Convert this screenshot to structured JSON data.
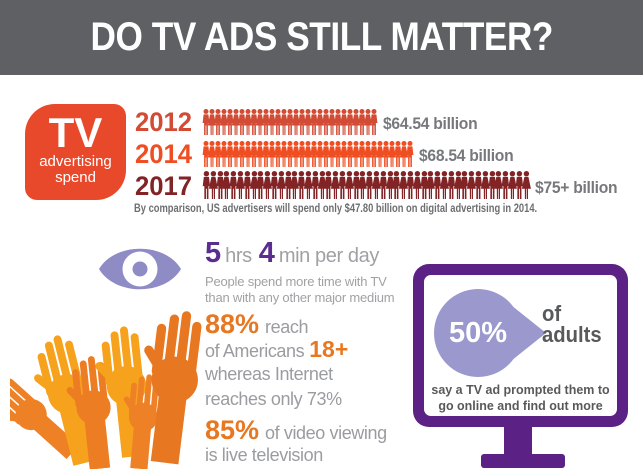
{
  "header": {
    "title": "DO TV ADS STILL MATTER?",
    "bg": "#5e6063"
  },
  "spend_badge": {
    "title": "TV",
    "line2": "advertising",
    "line3": "spend",
    "bg": "#e8492b"
  },
  "spend_rows": [
    {
      "year": "2012",
      "value": "$64.54 billion",
      "color": "#d14b35",
      "count": 29
    },
    {
      "year": "2014",
      "value": "$68.54 billion",
      "color": "#ef4e23",
      "count": 35
    },
    {
      "year": "2017",
      "value": "$75+ billion",
      "color": "#822325",
      "count": 48
    }
  ],
  "spend_note": "By comparison, US advertisers will spend only $47.80 billion on digital advertising in 2014.",
  "time_stat": {
    "hours": "5",
    "hours_unit": "hrs",
    "minutes": "4",
    "minutes_unit": "min per day",
    "desc1": "People spend more time with TV",
    "desc2": "than with any other major medium"
  },
  "reach_stat": {
    "pct": "88%",
    "pct_suffix": "reach",
    "line2_text": "of Americans",
    "age": "18+",
    "line3": "whereas Internet",
    "line4": "reaches only 73%"
  },
  "video_stat": {
    "pct": "85%",
    "line1_rest": "of video viewing",
    "line2": "is live television"
  },
  "tv_callout": {
    "pct": "50%",
    "of_line1": "of",
    "of_line2": "adults",
    "desc1": "say a TV ad prompted them to",
    "desc2": "go online and find out more"
  },
  "colors": {
    "banner_gray": "#5e6063",
    "badge_red": "#e8492b",
    "row_2012": "#d14b35",
    "row_2014": "#ef4e23",
    "row_2017": "#822325",
    "accent_orange": "#e87722",
    "stat_purple": "#5b2d91",
    "lavender": "#8e8bc5",
    "teardrop_lavender": "#9b98ce",
    "monitor_purple": "#5c2185",
    "gray_text": "#9b9ca0",
    "dark_gray": "#58595b",
    "value_gray": "#77787b"
  },
  "chart_data": {
    "type": "bar",
    "variant": "pictogram (crowd of person icons per year)",
    "title": "TV advertising spend",
    "categories": [
      "2012",
      "2014",
      "2017"
    ],
    "values": [
      64.54,
      68.54,
      75
    ],
    "unit": "USD billion",
    "value_labels": [
      "$64.54 billion",
      "$68.54 billion",
      "$75+ billion"
    ],
    "series_colors": [
      "#d14b35",
      "#ef4e23",
      "#822325"
    ],
    "note": "By comparison, US advertisers will spend only $47.80 billion on digital advertising in 2014.",
    "related_stats": [
      {
        "stat": "5 hrs 4 min per day",
        "desc": "People spend more time with TV than with any other major medium"
      },
      {
        "stat": "88%",
        "desc": "reach of Americans 18+ whereas Internet reaches only 73%"
      },
      {
        "stat": "85%",
        "desc": "of video viewing is live television"
      },
      {
        "stat": "50%",
        "desc": "of adults say a TV ad prompted them to go online and find out more"
      }
    ]
  }
}
